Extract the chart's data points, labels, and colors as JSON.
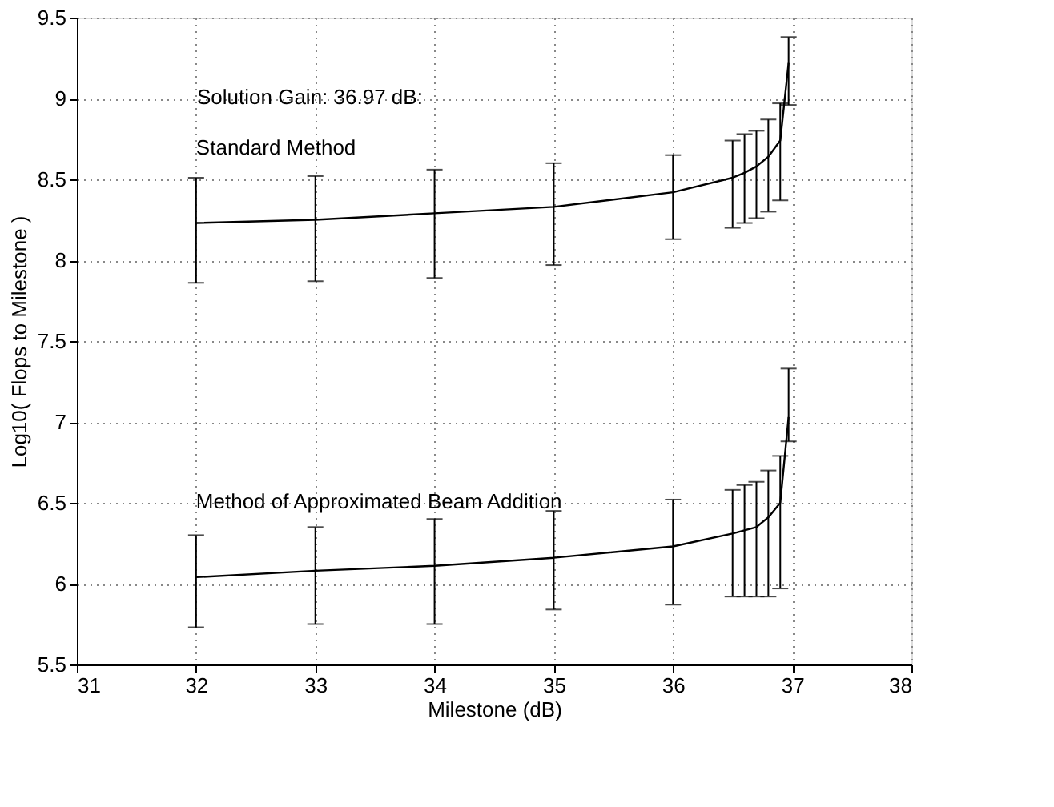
{
  "chart_data": {
    "type": "line",
    "xlabel": "Milestone (dB)",
    "ylabel": "Log10( Flops to Milestone )",
    "xlim": [
      31,
      38
    ],
    "xticks": [
      31,
      32,
      33,
      34,
      35,
      36,
      37,
      38
    ],
    "ylim": [
      5.5,
      9.5
    ],
    "yticks": [
      5.5,
      6,
      6.5,
      7,
      7.5,
      8,
      8.5,
      9,
      9.5
    ],
    "grid": true,
    "marker": "none",
    "line_style": "solid",
    "x": [
      32,
      33,
      34,
      35,
      36,
      36.5,
      36.6,
      36.7,
      36.8,
      36.9,
      36.97
    ],
    "series": [
      {
        "name": "Standard Method",
        "color": "#000000",
        "values": [
          8.23,
          8.25,
          8.29,
          8.33,
          8.42,
          8.51,
          8.54,
          8.58,
          8.64,
          8.74,
          9.22
        ],
        "errors": [
          [
            7.86,
            8.51
          ],
          [
            7.87,
            8.52
          ],
          [
            7.89,
            8.56
          ],
          [
            7.97,
            8.6
          ],
          [
            8.13,
            8.65
          ],
          [
            8.2,
            8.74
          ],
          [
            8.23,
            8.78
          ],
          [
            8.26,
            8.8
          ],
          [
            8.3,
            8.87
          ],
          [
            8.37,
            8.97
          ],
          [
            8.96,
            9.38
          ]
        ]
      },
      {
        "name": "Method of Approximated Beam Addition",
        "color": "#000000",
        "values": [
          6.04,
          6.08,
          6.11,
          6.16,
          6.23,
          6.31,
          6.33,
          6.35,
          6.41,
          6.5,
          7.03
        ],
        "errors": [
          [
            5.73,
            6.3
          ],
          [
            5.75,
            6.35
          ],
          [
            5.75,
            6.4
          ],
          [
            5.84,
            6.45
          ],
          [
            5.87,
            6.52
          ],
          [
            5.92,
            6.58
          ],
          [
            5.92,
            6.61
          ],
          [
            5.92,
            6.63
          ],
          [
            5.92,
            6.7
          ],
          [
            5.97,
            6.79
          ],
          [
            6.88,
            7.33
          ]
        ]
      }
    ],
    "annotations": [
      "Solution Gain:  36.97 dB:"
    ]
  }
}
